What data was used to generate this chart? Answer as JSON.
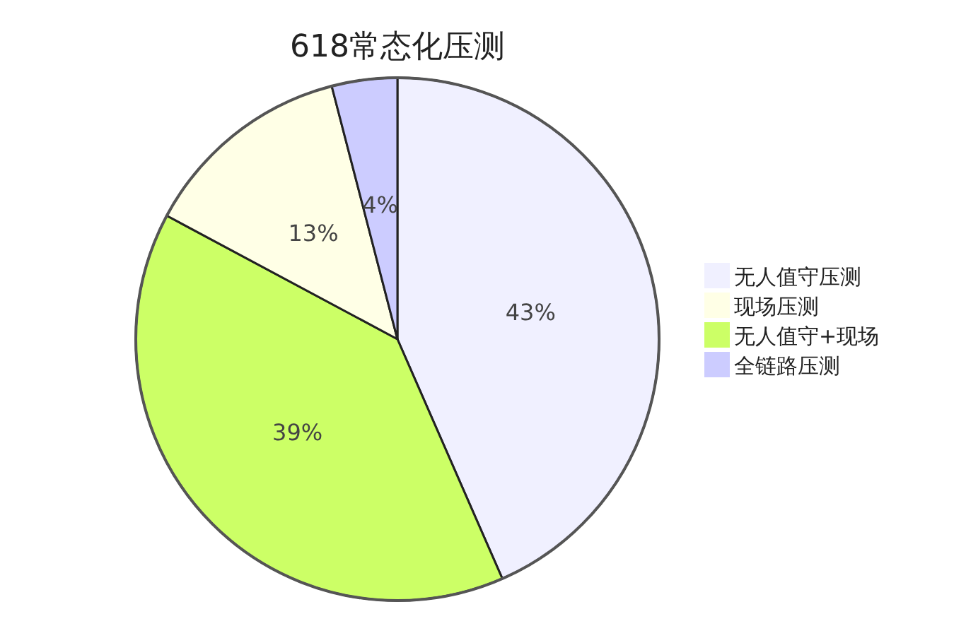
{
  "chart_data": {
    "type": "pie",
    "title": "618常态化压测",
    "categories": [
      "无人值守压测",
      "现场压测",
      "无人值守+现场",
      "全链路压测"
    ],
    "values": [
      43,
      13,
      39,
      4
    ],
    "colors": [
      "#f0f0ff",
      "#ffffe6",
      "#ccff66",
      "#ccccff"
    ],
    "value_labels": [
      "43%",
      "13%",
      "39%",
      "4%"
    ],
    "legend": "right"
  }
}
